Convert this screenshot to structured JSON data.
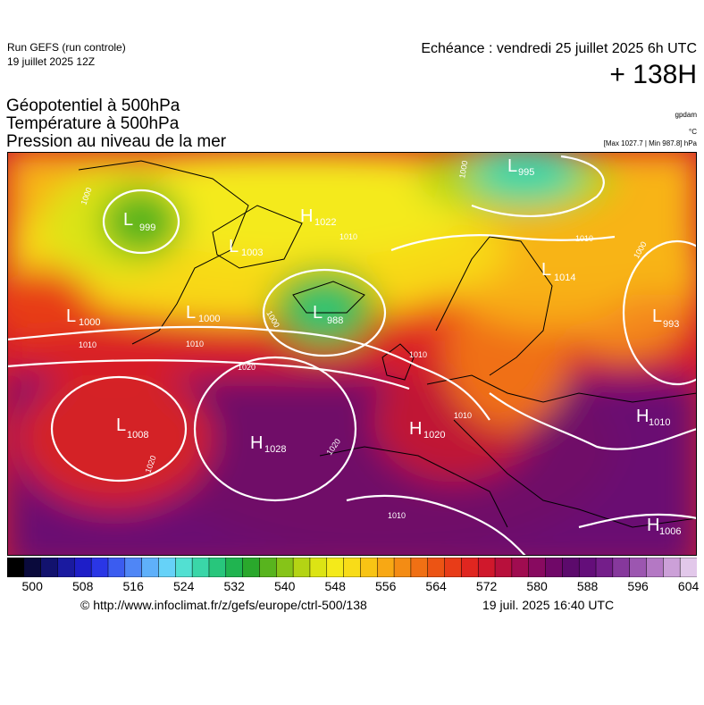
{
  "header": {
    "run_title": "Run GEFS (run controle)",
    "run_date": "19 juillet 2025 12Z",
    "valid_time": "Echéance : vendredi 25 juillet 2025 6h UTC",
    "lead_time": "+ 138H"
  },
  "fields": {
    "line1": "Géopotentiel à 500hPa",
    "line2": "Température à 500hPa",
    "line3": "Pression au niveau de la mer"
  },
  "units": {
    "geopotential": "gpdam",
    "temperature": "°C",
    "pressure_range": "[Max 1027.7 | Min 987.8] hPa"
  },
  "map": {
    "region": "Europe / North Atlantic",
    "pressure_labels": [
      {
        "type": "L",
        "value": "999"
      },
      {
        "type": "L",
        "value": "995"
      },
      {
        "type": "H",
        "value": "1022"
      },
      {
        "type": "L",
        "value": "1003"
      },
      {
        "type": "L",
        "value": "1014"
      },
      {
        "type": "L",
        "value": "1000"
      },
      {
        "type": "L",
        "value": "1000"
      },
      {
        "type": "L",
        "value": "988"
      },
      {
        "type": "L",
        "value": "993"
      },
      {
        "type": "L",
        "value": "1008"
      },
      {
        "type": "H",
        "value": "1028"
      },
      {
        "type": "H",
        "value": "1020"
      },
      {
        "type": "H",
        "value": "1010"
      },
      {
        "type": "H",
        "value": "1006"
      }
    ],
    "isobar_labels": [
      "1000",
      "1010",
      "1020",
      "1010",
      "1010",
      "1000",
      "1010",
      "1020",
      "1010",
      "1020",
      "1010",
      "1010",
      "1000",
      "1000"
    ]
  },
  "colorbar": {
    "colors": [
      "#000000",
      "#0a0a3c",
      "#12126e",
      "#1a1aa0",
      "#1e1ec8",
      "#2a36e6",
      "#3b5cf0",
      "#4f86f6",
      "#5fb0fa",
      "#66d2f8",
      "#52e0d2",
      "#3ad6a8",
      "#28c67c",
      "#20b450",
      "#2aa82c",
      "#58b41e",
      "#86c418",
      "#b4d414",
      "#dce414",
      "#f4ea1a",
      "#f8dc18",
      "#f8c414",
      "#f8a814",
      "#f48c14",
      "#f07014",
      "#ec5414",
      "#e83c18",
      "#e02620",
      "#d0182c",
      "#b8103c",
      "#a00c50",
      "#880a60",
      "#700868",
      "#5c0a6c",
      "#640e7a",
      "#741e8a",
      "#86389c",
      "#9c56b0",
      "#b478c4",
      "#cca0d8",
      "#e2c8ea"
    ],
    "ticks": [
      "500",
      "508",
      "516",
      "524",
      "532",
      "540",
      "548",
      "556",
      "564",
      "572",
      "580",
      "588",
      "596",
      "604"
    ]
  },
  "footer": {
    "credit": "© http://www.infoclimat.fr/z/gefs/europe/ctrl-500/138",
    "generated": "19 juil. 2025 16:40 UTC"
  }
}
